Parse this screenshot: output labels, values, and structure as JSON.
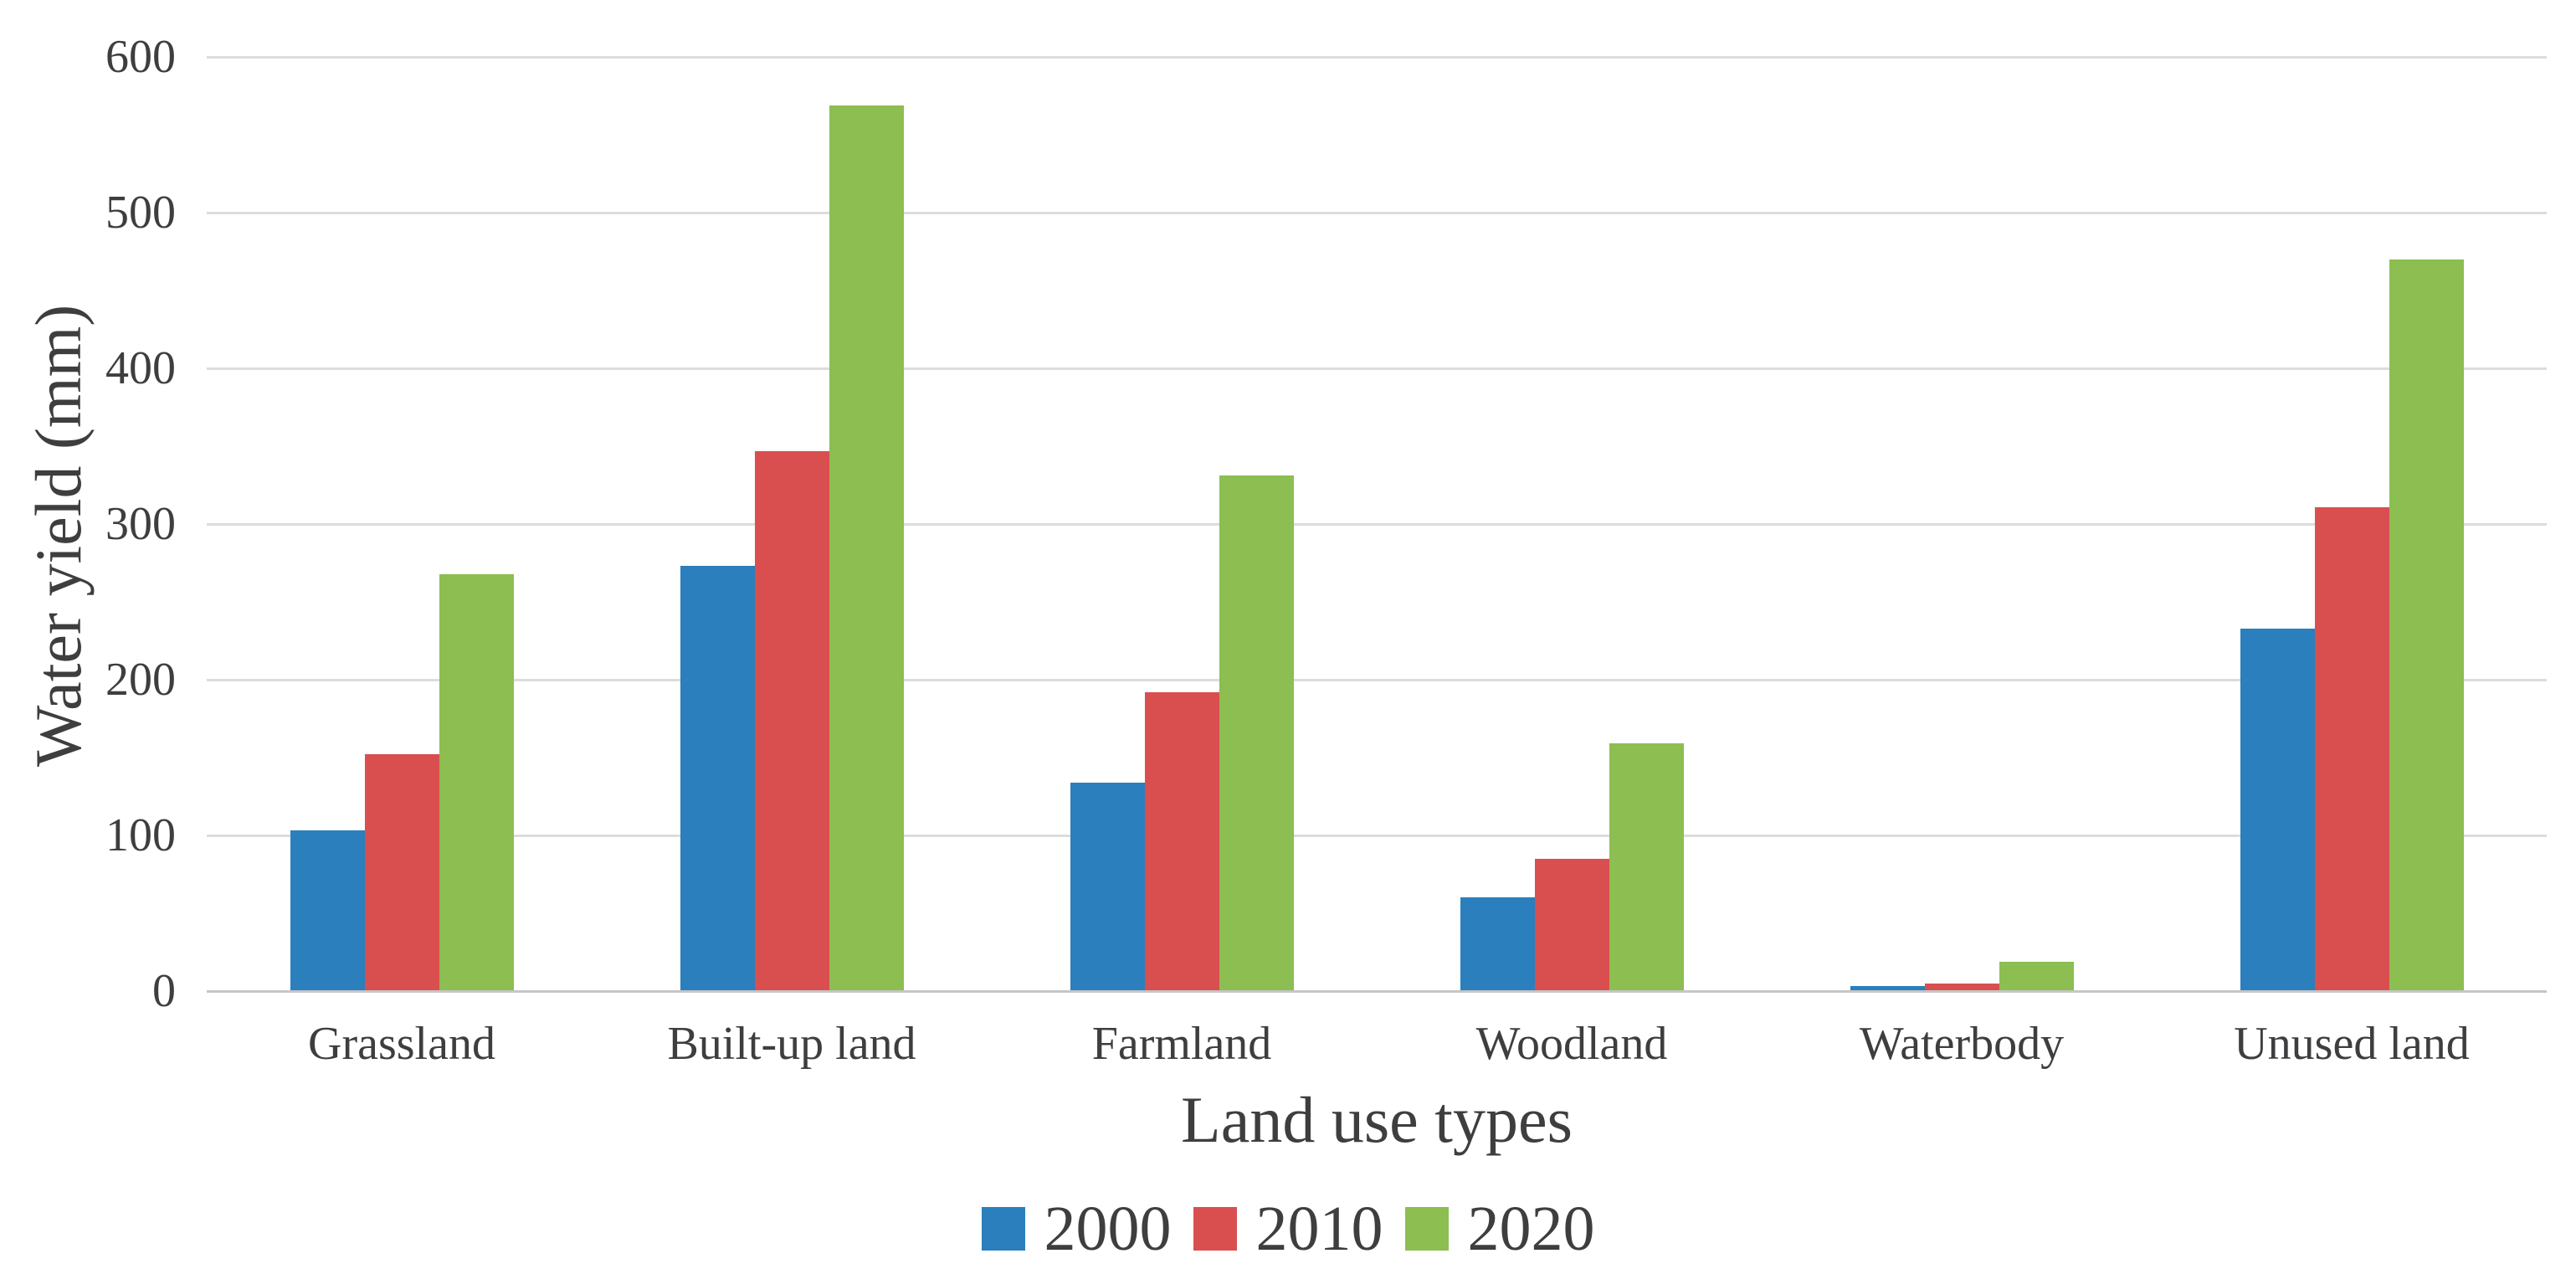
{
  "chart_data": {
    "type": "bar",
    "title": "",
    "xlabel": "Land use types",
    "ylabel": "Water yield (mm)",
    "categories": [
      "Grassland",
      "Built-up land",
      "Farmland",
      "Woodland",
      "Waterbody",
      "Unused land"
    ],
    "series": [
      {
        "name": "2000",
        "color": "#2A7FBC",
        "values": [
          103,
          273,
          134,
          60,
          3,
          233
        ]
      },
      {
        "name": "2010",
        "color": "#D94F4F",
        "values": [
          152,
          347,
          192,
          85,
          5,
          311
        ]
      },
      {
        "name": "2020",
        "color": "#8CBE51",
        "values": [
          268,
          569,
          331,
          159,
          19,
          470
        ]
      }
    ],
    "ylim": [
      0,
      600
    ],
    "ytick_step": 100,
    "grid": true,
    "legend_position": "bottom",
    "colors": {
      "grid": "#DCDCDC",
      "axis": "#C6C6C6",
      "text": "#3E3E40"
    }
  }
}
